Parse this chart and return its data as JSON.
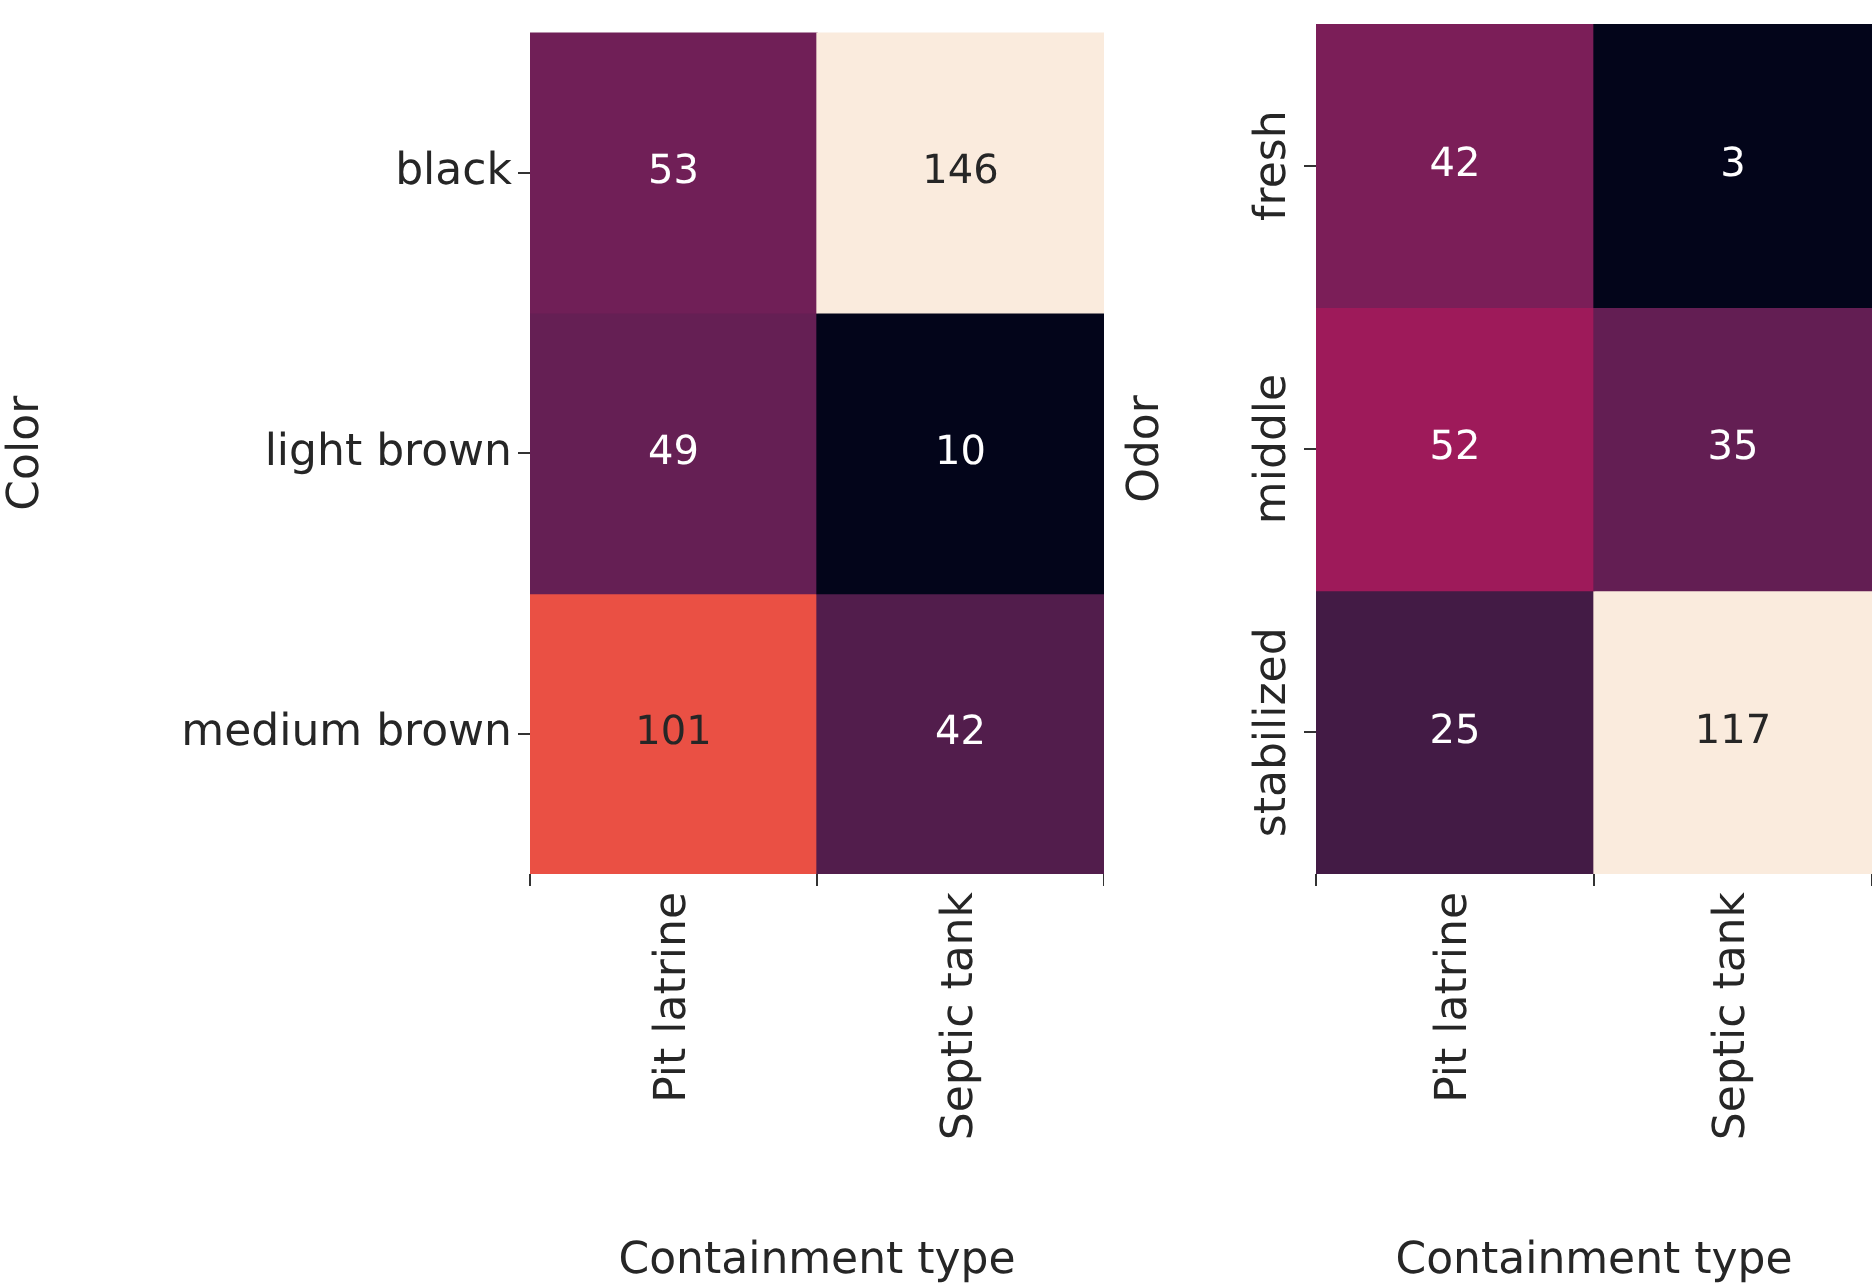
{
  "chart_data": [
    {
      "type": "heatmap",
      "categories": [
        "Pit latrine",
        "Septic tank"
      ],
      "y_categories": [
        "black",
        "light brown",
        "medium brown"
      ],
      "cells": [
        [
          53,
          146
        ],
        [
          49,
          10
        ],
        [
          101,
          42
        ]
      ],
      "xlabel": "Containment type",
      "ylabel": "Color",
      "data_labels": true
    },
    {
      "type": "heatmap",
      "categories": [
        "Pit latrine",
        "Septic tank"
      ],
      "y_categories": [
        "fresh",
        "middle",
        "stabilized"
      ],
      "cells": [
        [
          42,
          3
        ],
        [
          52,
          35
        ],
        [
          25,
          117
        ]
      ],
      "xlabel": "Containment type",
      "ylabel": "Odor",
      "data_labels": true
    }
  ]
}
